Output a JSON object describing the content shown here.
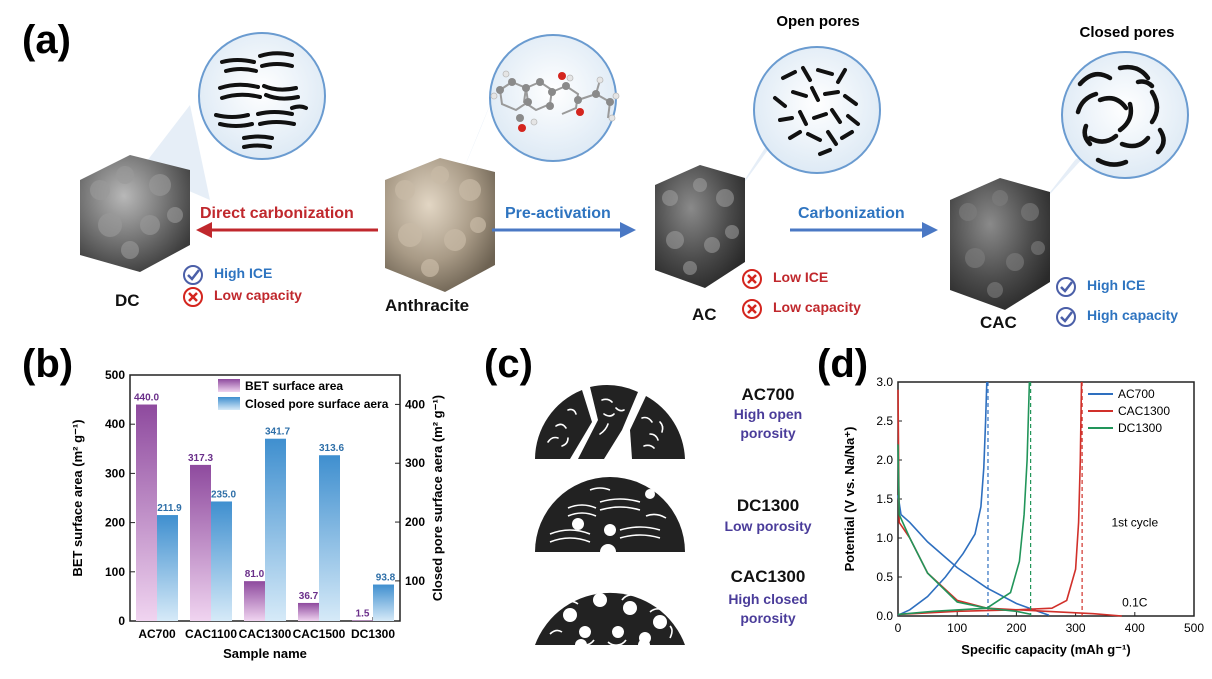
{
  "panel_a": {
    "label": "(a)",
    "dc_label": "DC",
    "anthracite_label": "Anthracite",
    "ac_label": "AC",
    "cac_label": "CAC",
    "arrow_direct": "Direct carbonization",
    "arrow_preact": "Pre-activation",
    "arrow_carbon": "Carbonization",
    "open_pores": "Open pores",
    "closed_pores": "Closed pores",
    "dc_pros": "High ICE",
    "dc_cons": "Low capacity",
    "ac_cons1": "Low ICE",
    "ac_cons2": "Low capacity",
    "cac_pros1": "High ICE",
    "cac_pros2": "High capacity",
    "colors": {
      "red": "#c0282d",
      "blue": "#2e74c0",
      "check": "#4b5fa8"
    }
  },
  "panel_b": {
    "label": "(b)",
    "chart_data": {
      "type": "bar",
      "categories": [
        "AC700",
        "CAC1100",
        "CAC1300",
        "CAC1500",
        "DC1300"
      ],
      "series": [
        {
          "name": "BET surface area",
          "values": [
            440.0,
            317.3,
            81.0,
            36.7,
            1.5
          ],
          "labels": [
            "440.0",
            "317.3",
            "81.0",
            "36.7",
            "1.5"
          ],
          "color": "#8e4a9e"
        },
        {
          "name": "Closed pore surface aera",
          "values": [
            211.9,
            235.0,
            341.7,
            313.6,
            93.8
          ],
          "labels": [
            "211.9",
            "235.0",
            "341.7",
            "313.6",
            "93.8"
          ],
          "color": "#3f8fcf"
        }
      ],
      "xlabel": "Sample name",
      "ylabel_left": "BET surface area (m² g⁻¹)",
      "ylabel_right": "Closed pore surface aera (m² g⁻¹)",
      "ylim_left": [
        0,
        500
      ],
      "ylim_right": [
        31.8,
        450
      ],
      "yticks_left": [
        "0",
        "100",
        "200",
        "300",
        "400",
        "500"
      ],
      "yticks_right": [
        "100",
        "200",
        "300",
        "400"
      ],
      "legend_placement": "top-right"
    }
  },
  "panel_c": {
    "label": "(c)",
    "items": [
      {
        "name": "AC700",
        "desc1": "High open",
        "desc2": "porosity"
      },
      {
        "name": "DC1300",
        "desc1": "Low porosity",
        "desc2": ""
      },
      {
        "name": "CAC1300",
        "desc1": "High closed",
        "desc2": "porosity"
      }
    ]
  },
  "panel_d": {
    "label": "(d)",
    "chart_data": {
      "type": "line",
      "xlabel": "Specific capacity (mAh g⁻¹)",
      "ylabel": "Potential (V vs. Na/Na⁺)",
      "xlim": [
        0,
        500
      ],
      "ylim": [
        0,
        3.0
      ],
      "xticks": [
        "0",
        "100",
        "200",
        "300",
        "400",
        "500"
      ],
      "yticks": [
        "0.0",
        "0.5",
        "1.0",
        "1.5",
        "2.0",
        "2.5",
        "3.0"
      ],
      "annotation_cycle": "1st cycle",
      "annotation_rate": "0.1C",
      "legend_placement": "top-right",
      "series": [
        {
          "name": "AC700",
          "color": "#2e6fbf",
          "discharge": [
            [
              0,
              1.55
            ],
            [
              5,
              1.3
            ],
            [
              20,
              1.2
            ],
            [
              50,
              0.95
            ],
            [
              100,
              0.62
            ],
            [
              150,
              0.36
            ],
            [
              200,
              0.16
            ],
            [
              240,
              0.05
            ],
            [
              255,
              0.01
            ]
          ],
          "charge": [
            [
              0,
              0.01
            ],
            [
              20,
              0.08
            ],
            [
              50,
              0.25
            ],
            [
              80,
              0.5
            ],
            [
              110,
              0.8
            ],
            [
              130,
              1.05
            ],
            [
              140,
              1.4
            ],
            [
              145,
              1.9
            ],
            [
              148,
              2.5
            ],
            [
              150,
              3.0
            ]
          ],
          "dash_x": 152
        },
        {
          "name": "CAC1300",
          "color": "#d1302a",
          "discharge": [
            [
              0,
              2.9
            ],
            [
              2,
              1.2
            ],
            [
              20,
              1.0
            ],
            [
              50,
              0.55
            ],
            [
              100,
              0.2
            ],
            [
              150,
              0.1
            ],
            [
              250,
              0.06
            ],
            [
              330,
              0.03
            ],
            [
              378,
              0.0
            ]
          ],
          "charge": [
            [
              0,
              0.02
            ],
            [
              100,
              0.06
            ],
            [
              200,
              0.08
            ],
            [
              260,
              0.1
            ],
            [
              285,
              0.2
            ],
            [
              300,
              0.6
            ],
            [
              305,
              1.2
            ],
            [
              308,
              2.0
            ],
            [
              310,
              3.0
            ]
          ],
          "dash_x": 311
        },
        {
          "name": "DC1300",
          "color": "#22955a",
          "discharge": [
            [
              0,
              2.2
            ],
            [
              2,
              1.3
            ],
            [
              20,
              1.0
            ],
            [
              50,
              0.55
            ],
            [
              100,
              0.18
            ],
            [
              150,
              0.1
            ],
            [
              200,
              0.06
            ],
            [
              225,
              0.02
            ]
          ],
          "charge": [
            [
              0,
              0.02
            ],
            [
              60,
              0.06
            ],
            [
              150,
              0.1
            ],
            [
              190,
              0.3
            ],
            [
              205,
              0.7
            ],
            [
              213,
              1.3
            ],
            [
              218,
              2.0
            ],
            [
              222,
              3.0
            ]
          ],
          "dash_x": 224
        }
      ]
    }
  }
}
